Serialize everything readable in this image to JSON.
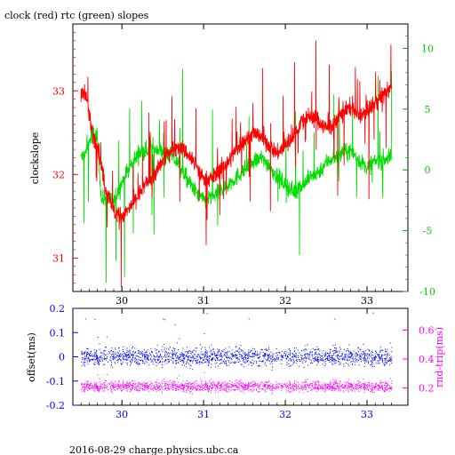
{
  "title": "clock (red) rtc (green) slopes",
  "footer": "2016-08-29 charge.physics.ubc.ca",
  "colors": {
    "clock": "#ff0000",
    "rtc": "#00dd00",
    "offset": "#0000ff",
    "rndtrip": "#ff00ff",
    "frame": "#000000"
  },
  "chart_data": [
    {
      "type": "line",
      "title": "clock (red) rtc (green) slopes",
      "xlim": [
        29.4,
        33.5
      ],
      "x_ticks": [
        "30",
        "31",
        "32",
        "33"
      ],
      "x_tick_values": [
        30,
        31,
        32,
        33
      ],
      "ylabel": "clockslope",
      "ylim": [
        30.6,
        33.8
      ],
      "y_ticks": [
        "31",
        "32",
        "33"
      ],
      "y_tick_values": [
        31,
        32,
        33
      ],
      "y2lim": [
        -10,
        12
      ],
      "y2_ticks": [
        "-10",
        "-5",
        "0",
        "5",
        "10"
      ],
      "y2_tick_values": [
        -10,
        -5,
        0,
        5,
        10
      ],
      "grid": false,
      "series": [
        {
          "name": "clock",
          "axis": "left",
          "color": "#ff0000",
          "x": [
            29.5,
            29.55,
            29.6,
            29.65,
            29.7,
            29.75,
            29.8,
            29.85,
            29.9,
            30.0,
            30.1,
            30.2,
            30.3,
            30.4,
            30.5,
            30.6,
            30.7,
            30.8,
            30.9,
            31.0,
            31.1,
            31.2,
            31.3,
            31.4,
            31.5,
            31.6,
            31.7,
            31.8,
            31.9,
            32.0,
            32.1,
            32.2,
            32.3,
            32.4,
            32.5,
            32.6,
            32.7,
            32.8,
            32.9,
            33.0,
            33.1,
            33.2,
            33.3
          ],
          "y": [
            32.95,
            33.0,
            32.7,
            32.45,
            32.35,
            32.1,
            31.8,
            31.75,
            31.55,
            31.5,
            31.6,
            31.75,
            31.9,
            32.0,
            32.15,
            32.3,
            32.35,
            32.25,
            32.1,
            31.95,
            31.95,
            32.05,
            32.15,
            32.3,
            32.4,
            32.5,
            32.45,
            32.35,
            32.25,
            32.35,
            32.45,
            32.65,
            32.7,
            32.65,
            32.55,
            32.6,
            32.75,
            32.8,
            32.7,
            32.75,
            32.85,
            32.95,
            33.05
          ]
        },
        {
          "name": "rtc",
          "axis": "right",
          "color": "#00dd00",
          "x": [
            29.5,
            29.55,
            29.6,
            29.65,
            29.7,
            29.75,
            29.8,
            29.85,
            29.9,
            30.0,
            30.1,
            30.2,
            30.3,
            30.4,
            30.5,
            30.6,
            30.7,
            30.8,
            30.9,
            31.0,
            31.1,
            31.2,
            31.3,
            31.4,
            31.5,
            31.6,
            31.7,
            31.8,
            31.9,
            32.0,
            32.1,
            32.2,
            32.3,
            32.4,
            32.5,
            32.6,
            32.7,
            32.8,
            32.9,
            33.0,
            33.1,
            33.2,
            33.3
          ],
          "y": [
            1.0,
            1.3,
            2.3,
            3.1,
            2.6,
            -2.5,
            -2.3,
            -2.4,
            -2.7,
            -1.0,
            0.3,
            1.3,
            1.6,
            1.8,
            1.5,
            1.2,
            0.4,
            -0.8,
            -1.8,
            -2.5,
            -2.2,
            -1.8,
            -1.2,
            -0.6,
            0.0,
            0.6,
            1.0,
            0.4,
            -0.6,
            -1.2,
            -1.8,
            -1.3,
            -0.6,
            -0.2,
            0.6,
            1.1,
            1.4,
            1.6,
            0.8,
            0.2,
            0.7,
            0.9,
            1.0
          ]
        }
      ]
    },
    {
      "type": "scatter",
      "xlim": [
        29.4,
        33.5
      ],
      "x_ticks": [
        "30",
        "31",
        "32",
        "33"
      ],
      "x_tick_values": [
        30,
        31,
        32,
        33
      ],
      "ylabel": "offset(ms)",
      "ylim": [
        -0.2,
        0.2
      ],
      "y_ticks": [
        "-0.2",
        "-0.1",
        "0",
        "0.1",
        "0.2"
      ],
      "y_tick_values": [
        -0.2,
        -0.1,
        0,
        0.1,
        0.2
      ],
      "y2label": "rnd-trip(ms)",
      "y2lim": [
        0.08,
        0.75
      ],
      "y2_ticks": [
        "0.2",
        "0.4",
        "0.6"
      ],
      "y2_tick_values": [
        0.2,
        0.4,
        0.6
      ],
      "grid": false,
      "series": [
        {
          "name": "offset",
          "axis": "left",
          "color": "#0000ff",
          "x_range": [
            29.5,
            33.3
          ],
          "center": 0.0,
          "spread": 0.03
        },
        {
          "name": "rnd-trip",
          "axis": "right",
          "color": "#ff00ff",
          "x_range": [
            29.5,
            33.3
          ],
          "center": 0.21,
          "spread": 0.03
        }
      ]
    }
  ]
}
